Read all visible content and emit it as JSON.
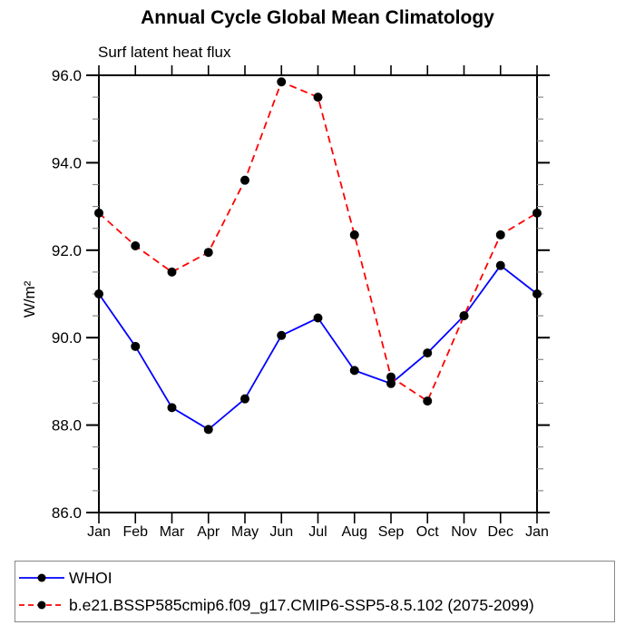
{
  "header": {
    "title": "Annual Cycle Global Mean Climatology",
    "subtitle": "Surf latent heat flux"
  },
  "chart_data": {
    "type": "line",
    "title": "Annual Cycle Global Mean Climatology",
    "subtitle": "Surf latent heat flux",
    "xlabel": "",
    "ylabel": "W/m²",
    "categories": [
      "Jan",
      "Feb",
      "Mar",
      "Apr",
      "May",
      "Jun",
      "Jul",
      "Aug",
      "Sep",
      "Oct",
      "Nov",
      "Dec",
      "Jan"
    ],
    "ylim": [
      86.0,
      96.0
    ],
    "ytick_major_interval": 2.0,
    "ytick_minor_interval": 0.5,
    "ytick_labels": [
      "86.0",
      "88.0",
      "90.0",
      "92.0",
      "94.0",
      "96.0"
    ],
    "grid": false,
    "legend_position": "bottom",
    "marker_color": "#000000",
    "series": [
      {
        "name": "WHOI",
        "color": "#0000ff",
        "style": "solid",
        "marker": "circle",
        "values": [
          91.0,
          89.8,
          88.4,
          87.9,
          88.6,
          90.05,
          90.45,
          89.25,
          88.95,
          89.65,
          90.5,
          91.65,
          91.0
        ]
      },
      {
        "name": "b.e21.BSSP585cmip6.f09_g17.CMIP6-SSP5-8.5.102 (2075-2099)",
        "color": "#ff0000",
        "style": "dashed",
        "marker": "circle",
        "values": [
          92.85,
          92.1,
          91.5,
          91.95,
          93.6,
          95.85,
          95.5,
          92.35,
          89.1,
          88.55,
          90.5,
          92.35,
          92.85
        ]
      }
    ]
  }
}
